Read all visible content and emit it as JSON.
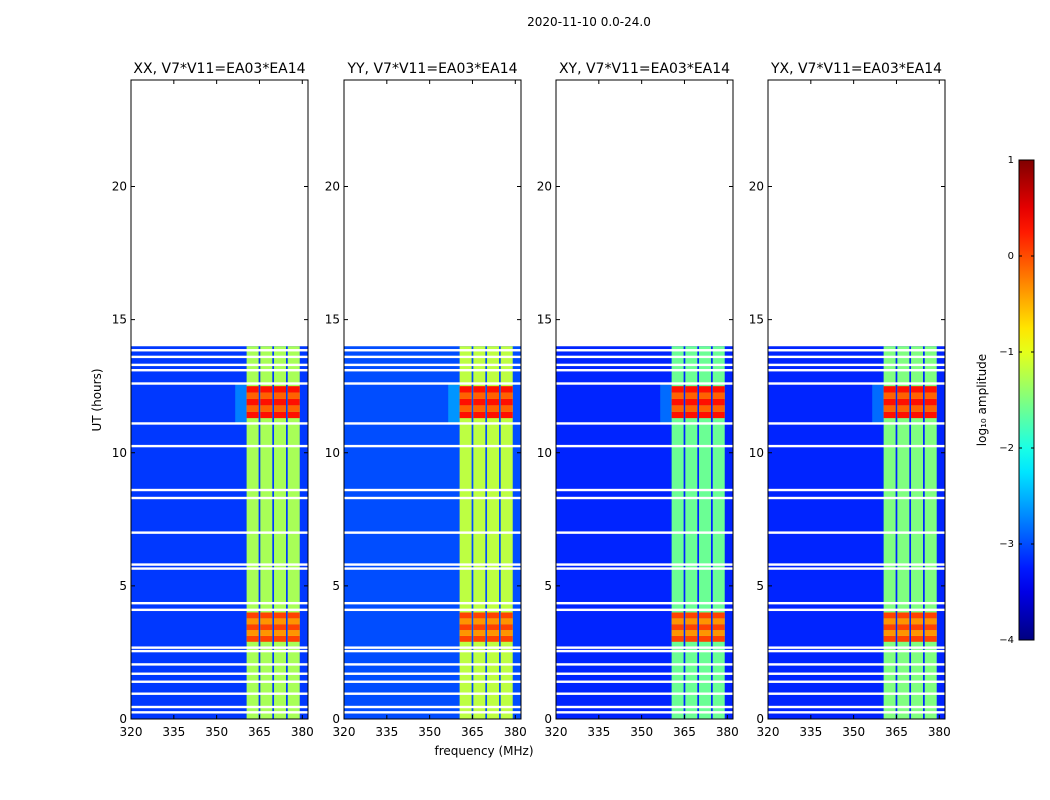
{
  "chart_data": {
    "type": "heatmap",
    "suptitle": "2020-11-10 0.0-24.0",
    "xlabel": "frequency (MHz)",
    "ylabel": "UT (hours)",
    "xlim": [
      320,
      382
    ],
    "ylim": [
      0,
      24
    ],
    "xticks": [
      320,
      335,
      350,
      365,
      380
    ],
    "yticks": [
      0,
      5,
      10,
      15,
      20
    ],
    "data_time_range": [
      0,
      14
    ],
    "rfi_band_mhz": [
      360.5,
      379.5
    ],
    "subbands": [
      {
        "low": 360.5,
        "high": 364.7
      },
      {
        "low": 365.3,
        "high": 369.5
      },
      {
        "low": 370.1,
        "high": 374.3
      },
      {
        "low": 374.9,
        "high": 379.1
      }
    ],
    "gap_times_hours": [
      0.25,
      0.45,
      0.95,
      1.4,
      1.7,
      2.05,
      2.55,
      2.68,
      4.1,
      4.35,
      5.65,
      5.8,
      7.0,
      8.3,
      8.6,
      10.25,
      11.1,
      12.6,
      13.1,
      13.3,
      13.6,
      13.85
    ],
    "bright_periods": [
      {
        "start": 11.3,
        "end": 12.5,
        "log_amp": 0.15
      },
      {
        "start": 2.9,
        "end": 4.0,
        "log_amp": -0.1
      }
    ],
    "panels": [
      {
        "title": "XX, V7*V11=EA03*EA14",
        "band_level": -1.3,
        "background": -3.1
      },
      {
        "title": "YY, V7*V11=EA03*EA14",
        "band_level": -1.2,
        "background": -3.0
      },
      {
        "title": "XY, V7*V11=EA03*EA14",
        "band_level": -1.6,
        "background": -3.2
      },
      {
        "title": "YX, V7*V11=EA03*EA14",
        "band_level": -1.5,
        "background": -3.2
      }
    ],
    "colorbar": {
      "label": "log₁₀ amplitude",
      "range": [
        -4,
        1
      ],
      "ticks": [
        {
          "value": 1,
          "label": "1"
        },
        {
          "value": 0,
          "label": "0"
        },
        {
          "value": -1,
          "label": "−1"
        },
        {
          "value": -2,
          "label": "−2"
        },
        {
          "value": -3,
          "label": "−3"
        },
        {
          "value": -4,
          "label": "−4"
        }
      ],
      "colormap": "jet"
    }
  }
}
